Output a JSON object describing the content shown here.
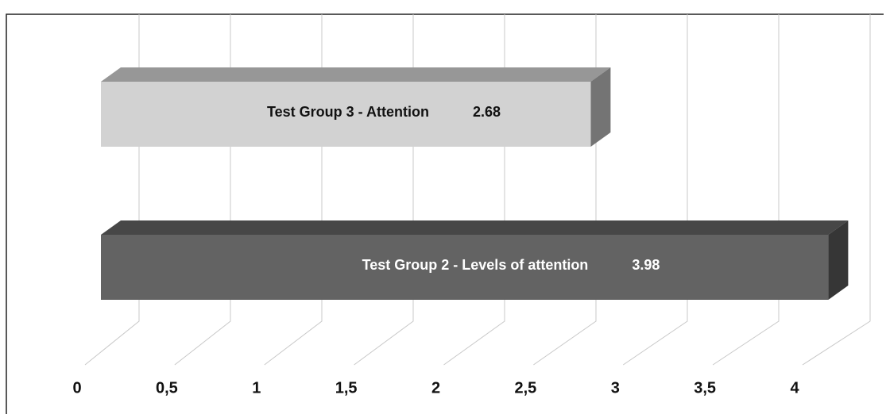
{
  "chart_data": {
    "type": "bar",
    "orientation": "horizontal",
    "categories": [
      "Test Group 3 - Attention",
      "Test Group 2 - Levels of attention"
    ],
    "values": [
      2.68,
      3.98
    ],
    "colors": [
      "#d2d2d2",
      "#636363"
    ],
    "xlim": [
      0,
      4
    ],
    "xticks": [
      0,
      {
        "value": 0.5,
        "label": "0,5"
      },
      1,
      {
        "value": 1.5,
        "label": "1,5"
      },
      2,
      {
        "value": 2.5,
        "label": "2,5"
      },
      3,
      {
        "value": 3.5,
        "label": "3,5"
      },
      4
    ],
    "grid": true
  }
}
